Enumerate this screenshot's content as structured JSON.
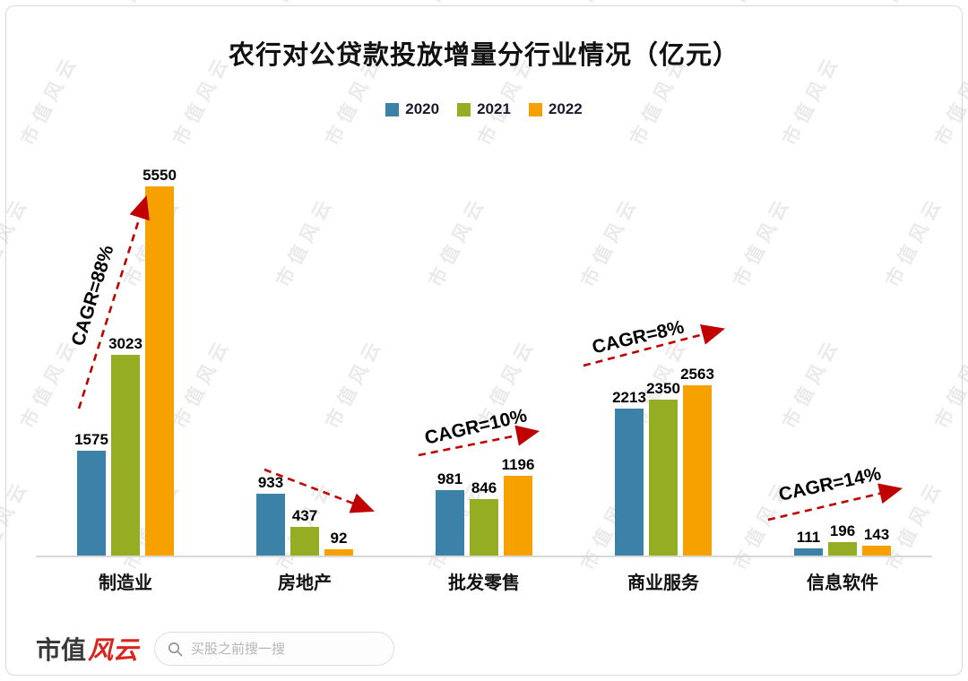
{
  "title": "农行对公贷款投放增量分行业情况（亿元）",
  "watermark": "市值风云",
  "colors": {
    "arrow": "#c00000",
    "axis": "#d8d8d8"
  },
  "footer": {
    "logo_text_black": "市值",
    "logo_text_red": "风云",
    "search_placeholder": "买股之前搜一搜"
  },
  "chart_data": {
    "type": "bar",
    "categories": [
      "制造业",
      "房地产",
      "批发零售",
      "商业服务",
      "信息软件"
    ],
    "series": [
      {
        "name": "2020",
        "color": "#3c81a8",
        "values": [
          1575,
          933,
          981,
          2213,
          111
        ]
      },
      {
        "name": "2021",
        "color": "#94ad23",
        "values": [
          3023,
          437,
          846,
          2350,
          196
        ]
      },
      {
        "name": "2022",
        "color": "#f7a100",
        "values": [
          5550,
          92,
          1196,
          2563,
          143
        ]
      }
    ],
    "annotations": [
      {
        "category": "制造业",
        "label": "CAGR=88%",
        "trend": "up"
      },
      {
        "category": "房地产",
        "label": "",
        "trend": "down"
      },
      {
        "category": "批发零售",
        "label": "CAGR=10%",
        "trend": "up"
      },
      {
        "category": "商业服务",
        "label": "CAGR=8%",
        "trend": "up"
      },
      {
        "category": "信息软件",
        "label": "CAGR=14%",
        "trend": "up"
      }
    ],
    "ylim": [
      0,
      5800
    ],
    "grid": false,
    "legend_position": "top"
  }
}
